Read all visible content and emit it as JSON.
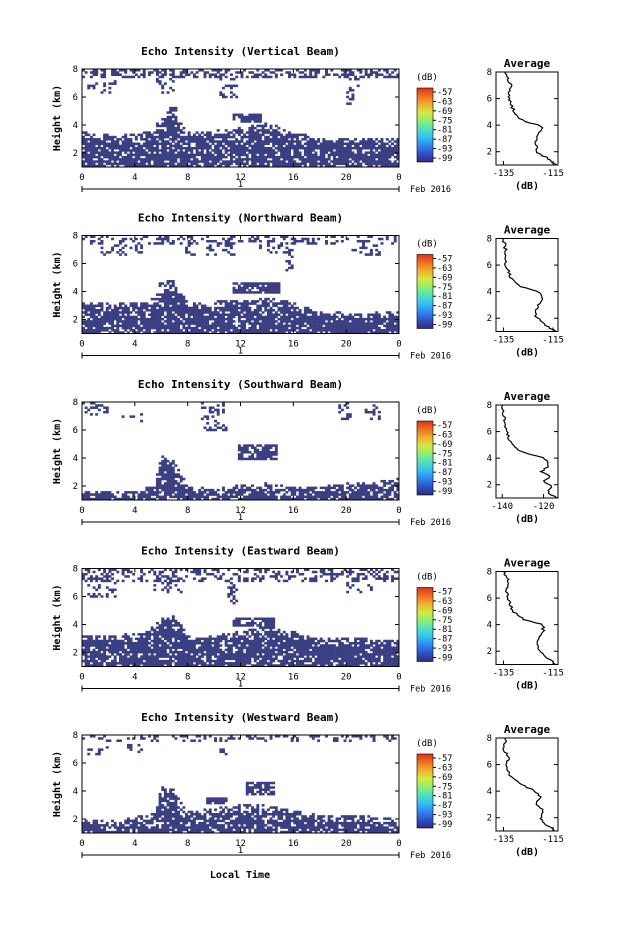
{
  "colors": {
    "echo": "#3b3f82",
    "colorbar": [
      "#2f2f7e",
      "#3050c8",
      "#2f88f0",
      "#34c0f0",
      "#50e0c0",
      "#8cf070",
      "#d8e840",
      "#f0b030",
      "#f07020",
      "#e03020"
    ]
  },
  "common": {
    "x_ticks": [
      "0",
      "4",
      "8",
      "12",
      "16",
      "20",
      "0"
    ],
    "day_label": "1",
    "date_label": "Feb 2016",
    "y_ticks": [
      "2",
      "4",
      "6",
      "8"
    ],
    "y_label": "Height (km)",
    "xlabel": "Local Time",
    "cb_unit": "(dB)",
    "cb_ticks": [
      "-57",
      "-63",
      "-69",
      "-75",
      "-81",
      "-87",
      "-93",
      "-99"
    ],
    "avg_title": "Average",
    "avg_xlabel": "(dB)"
  },
  "chart_data": [
    {
      "type": "heatmap",
      "title": "Echo Intensity (Vertical Beam)",
      "xlim": [
        0,
        24
      ],
      "ylim": [
        1,
        8
      ],
      "avg_x_ticks": [
        "-135",
        "-115"
      ],
      "avg_xlim": [
        -138,
        -113
      ],
      "avg_profile": [
        [
          -114,
          1.0
        ],
        [
          -117,
          1.5
        ],
        [
          -121,
          1.9
        ],
        [
          -122,
          2.6
        ],
        [
          -121,
          3.2
        ],
        [
          -119,
          3.8
        ],
        [
          -121,
          4.0
        ],
        [
          -127,
          4.3
        ],
        [
          -130,
          4.8
        ],
        [
          -132,
          5.5
        ],
        [
          -133,
          6.3
        ],
        [
          -132,
          7.0
        ],
        [
          -134,
          8.0
        ]
      ],
      "low_top": [
        [
          0,
          3.5
        ],
        [
          3,
          3.3
        ],
        [
          5,
          3.5
        ],
        [
          6,
          4.4
        ],
        [
          7,
          4.8
        ],
        [
          8,
          3.5
        ],
        [
          10,
          3.6
        ],
        [
          12,
          3.8
        ],
        [
          14,
          4.2
        ],
        [
          15.5,
          3.7
        ],
        [
          18,
          3.0
        ],
        [
          20,
          3.1
        ],
        [
          22,
          3.0
        ],
        [
          24,
          3.0
        ]
      ],
      "clouds": [
        [
          11.5,
          13.5,
          4.2,
          4.8
        ],
        [
          6.4,
          7.2,
          4.8,
          5.3
        ]
      ],
      "high": [
        [
          0,
          24,
          7.4,
          8.0,
          0.45
        ],
        [
          0.5,
          2.5,
          6.2,
          7.4,
          0.3
        ],
        [
          5.6,
          7.0,
          6.3,
          7.4,
          0.35
        ],
        [
          10.5,
          11.8,
          6.0,
          7.4,
          0.3
        ],
        [
          20.0,
          21.0,
          5.5,
          7.4,
          0.3
        ]
      ]
    },
    {
      "type": "heatmap",
      "title": "Echo Intensity (Northward Beam)",
      "xlim": [
        0,
        24
      ],
      "ylim": [
        1,
        8
      ],
      "avg_x_ticks": [
        "-135",
        "-115"
      ],
      "avg_xlim": [
        -138,
        -113
      ],
      "avg_profile": [
        [
          -114,
          1.0
        ],
        [
          -118,
          1.5
        ],
        [
          -122,
          2.2
        ],
        [
          -121,
          3.0
        ],
        [
          -119,
          3.6
        ],
        [
          -121,
          4.0
        ],
        [
          -128,
          4.4
        ],
        [
          -132,
          5.0
        ],
        [
          -134,
          6.0
        ],
        [
          -134,
          7.0
        ],
        [
          -135,
          8.0
        ]
      ],
      "low_top": [
        [
          0,
          3.3
        ],
        [
          3,
          3.2
        ],
        [
          5,
          3.3
        ],
        [
          6,
          4.0
        ],
        [
          7,
          4.5
        ],
        [
          8,
          3.3
        ],
        [
          10,
          3.3
        ],
        [
          12,
          3.4
        ],
        [
          14,
          3.5
        ],
        [
          15.5,
          3.4
        ],
        [
          18,
          2.6
        ],
        [
          20,
          2.5
        ],
        [
          22,
          2.5
        ],
        [
          24,
          2.6
        ]
      ],
      "clouds": [
        [
          11.5,
          15.0,
          3.8,
          4.6
        ],
        [
          5.8,
          7.0,
          4.3,
          4.8
        ]
      ],
      "high": [
        [
          0,
          24,
          7.4,
          8.0,
          0.3
        ],
        [
          1.5,
          4.5,
          6.6,
          7.4,
          0.25
        ],
        [
          7.8,
          11.5,
          6.6,
          7.4,
          0.25
        ],
        [
          13.5,
          15.5,
          6.8,
          7.4,
          0.25
        ],
        [
          15.5,
          16.0,
          5.5,
          7.0,
          0.35
        ],
        [
          20.5,
          22.5,
          6.6,
          7.4,
          0.25
        ]
      ]
    },
    {
      "type": "heatmap",
      "title": "Echo Intensity (Southward Beam)",
      "xlim": [
        0,
        24
      ],
      "ylim": [
        1,
        8
      ],
      "avg_x_ticks": [
        "-140",
        "-120"
      ],
      "avg_xlim": [
        -143,
        -113
      ],
      "avg_profile": [
        [
          -113,
          1.0
        ],
        [
          -118,
          1.4
        ],
        [
          -116,
          1.9
        ],
        [
          -120,
          2.2
        ],
        [
          -117,
          2.6
        ],
        [
          -121,
          3.0
        ],
        [
          -117,
          3.5
        ],
        [
          -120,
          4.0
        ],
        [
          -131,
          4.5
        ],
        [
          -136,
          5.2
        ],
        [
          -138,
          6.0
        ],
        [
          -139,
          7.0
        ],
        [
          -140,
          8.0
        ]
      ],
      "low_top": [
        [
          0,
          1.7
        ],
        [
          4,
          1.7
        ],
        [
          5.5,
          2.0
        ],
        [
          6,
          4.2
        ],
        [
          7,
          3.8
        ],
        [
          8,
          2.0
        ],
        [
          10,
          1.8
        ],
        [
          12,
          2.1
        ],
        [
          14,
          2.2
        ],
        [
          16,
          2.0
        ],
        [
          18,
          2.0
        ],
        [
          20,
          2.2
        ],
        [
          22,
          2.3
        ],
        [
          24,
          2.6
        ]
      ],
      "clouds": [
        [
          11.8,
          14.8,
          3.9,
          4.9
        ]
      ],
      "high": [
        [
          0,
          2.0,
          7.0,
          8.0,
          0.3
        ],
        [
          3.0,
          4.5,
          6.6,
          7.4,
          0.25
        ],
        [
          9.0,
          11.0,
          6.0,
          8.0,
          0.25
        ],
        [
          19.5,
          20.5,
          6.8,
          8.0,
          0.3
        ],
        [
          21.5,
          22.5,
          6.8,
          8.0,
          0.3
        ]
      ]
    },
    {
      "type": "heatmap",
      "title": "Echo Intensity (Eastward Beam)",
      "xlim": [
        0,
        24
      ],
      "ylim": [
        1,
        8
      ],
      "avg_x_ticks": [
        "-135",
        "-115"
      ],
      "avg_xlim": [
        -138,
        -113
      ],
      "avg_profile": [
        [
          -114,
          1.0
        ],
        [
          -118,
          1.6
        ],
        [
          -121,
          2.0
        ],
        [
          -121,
          2.8
        ],
        [
          -119,
          3.4
        ],
        [
          -119,
          4.0
        ],
        [
          -127,
          4.4
        ],
        [
          -131,
          5.0
        ],
        [
          -133,
          5.8
        ],
        [
          -134,
          6.6
        ],
        [
          -133,
          7.3
        ],
        [
          -135,
          8.0
        ]
      ],
      "low_top": [
        [
          0,
          3.3
        ],
        [
          3,
          3.3
        ],
        [
          5,
          3.5
        ],
        [
          6,
          4.5
        ],
        [
          7,
          4.6
        ],
        [
          8,
          3.3
        ],
        [
          10,
          3.3
        ],
        [
          12,
          3.5
        ],
        [
          14,
          3.9
        ],
        [
          16,
          3.5
        ],
        [
          18,
          3.0
        ],
        [
          20,
          3.0
        ],
        [
          22,
          3.0
        ],
        [
          24,
          2.9
        ]
      ],
      "clouds": [
        [
          11.5,
          14.5,
          3.8,
          4.5
        ]
      ],
      "high": [
        [
          0,
          24,
          7.0,
          8.0,
          0.35
        ],
        [
          0.5,
          2.5,
          6.0,
          7.0,
          0.3
        ],
        [
          5.5,
          7.5,
          6.2,
          7.0,
          0.3
        ],
        [
          11.0,
          11.8,
          5.5,
          7.0,
          0.4
        ],
        [
          20.0,
          22.0,
          6.3,
          7.0,
          0.3
        ]
      ]
    },
    {
      "type": "heatmap",
      "title": "Echo Intensity (Westward Beam)",
      "xlim": [
        0,
        24
      ],
      "ylim": [
        1,
        8
      ],
      "avg_x_ticks": [
        "-135",
        "-115"
      ],
      "avg_xlim": [
        -138,
        -113
      ],
      "avg_profile": [
        [
          -114,
          1.0
        ],
        [
          -118,
          1.5
        ],
        [
          -120,
          2.0
        ],
        [
          -119,
          2.6
        ],
        [
          -122,
          3.1
        ],
        [
          -120,
          3.6
        ],
        [
          -122,
          4.0
        ],
        [
          -128,
          4.5
        ],
        [
          -132,
          5.1
        ],
        [
          -134,
          5.8
        ],
        [
          -133,
          6.5
        ],
        [
          -135,
          7.2
        ],
        [
          -134,
          8.0
        ]
      ],
      "low_top": [
        [
          0,
          1.9
        ],
        [
          3,
          2.0
        ],
        [
          5.5,
          2.4
        ],
        [
          6,
          4.3
        ],
        [
          7,
          4.1
        ],
        [
          8,
          2.5
        ],
        [
          10,
          2.8
        ],
        [
          12,
          3.0
        ],
        [
          14,
          3.0
        ],
        [
          16,
          2.6
        ],
        [
          18,
          2.3
        ],
        [
          20,
          2.2
        ],
        [
          22,
          2.2
        ],
        [
          24,
          2.0
        ]
      ],
      "clouds": [
        [
          12.5,
          14.5,
          3.7,
          4.6
        ],
        [
          9.5,
          11.0,
          3.0,
          3.6
        ]
      ],
      "high": [
        [
          0,
          24,
          7.6,
          8.0,
          0.25
        ],
        [
          0.5,
          2.0,
          6.6,
          7.4,
          0.25
        ],
        [
          3.5,
          4.5,
          6.8,
          7.4,
          0.25
        ],
        [
          10.5,
          11.0,
          6.2,
          8.0,
          0.3
        ]
      ]
    }
  ]
}
